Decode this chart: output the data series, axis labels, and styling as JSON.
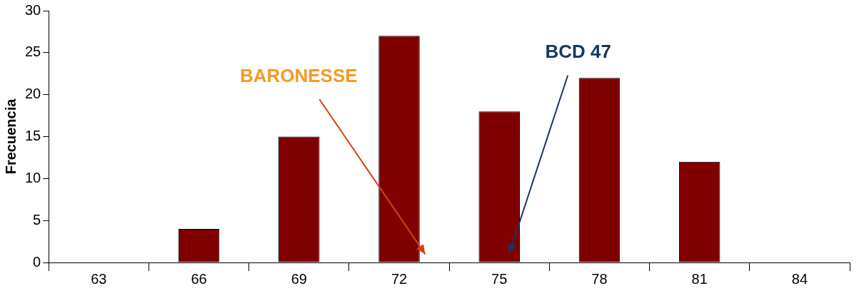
{
  "chart_data": {
    "type": "bar",
    "ylabel": "Frecuencia",
    "categories": [
      "63",
      "66",
      "69",
      "72",
      "75",
      "78",
      "81",
      "84"
    ],
    "values": [
      0,
      4,
      15,
      27,
      18,
      22,
      12,
      0
    ],
    "color": "#800000",
    "ylim": [
      0,
      30
    ],
    "yticks": [
      0,
      5,
      10,
      15,
      20,
      25,
      30
    ],
    "annotations": [
      "BARONESSE",
      "BCD 47"
    ]
  }
}
